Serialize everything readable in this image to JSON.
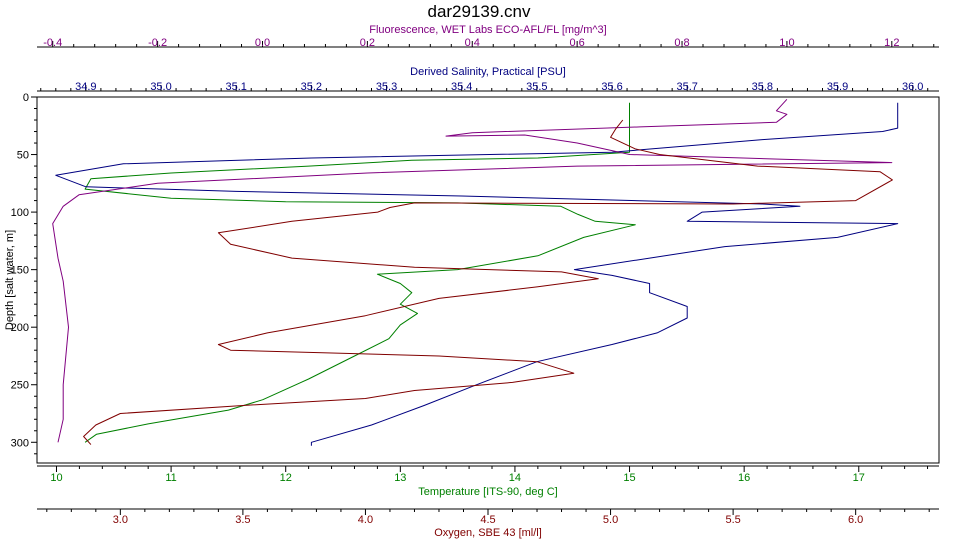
{
  "chart_data": {
    "type": "line",
    "title": "dar29139.cnv",
    "y_axis": {
      "label": "Depth [salt water, m]",
      "range": [
        0,
        318
      ],
      "reversed": true,
      "ticks": [
        0,
        50,
        100,
        150,
        200,
        250,
        300
      ],
      "color": "#000000"
    },
    "x_axes": [
      {
        "id": "fluor",
        "label": "Fluorescence, WET Labs ECO-AFL/FL [mg/m^3]",
        "position": "top-outer",
        "range": [
          -0.43,
          1.29
        ],
        "ticks": [
          -0.4,
          -0.2,
          0.0,
          0.2,
          0.4,
          0.6,
          0.8,
          1.0,
          1.2
        ],
        "tick_labels": [
          "-0.4",
          "-0.2",
          "0.0",
          "0.2",
          "0.4",
          "0.6",
          "0.8",
          "1.0",
          "1.2"
        ],
        "color": "#800080"
      },
      {
        "id": "sal",
        "label": "Derived Salinity, Practical [PSU]",
        "position": "top-inner",
        "range": [
          34.835,
          36.035
        ],
        "ticks": [
          34.9,
          35.0,
          35.1,
          35.2,
          35.3,
          35.4,
          35.5,
          35.6,
          35.7,
          35.8,
          35.9,
          36.0
        ],
        "tick_labels": [
          "34.9",
          "35.0",
          "35.1",
          "35.2",
          "35.3",
          "35.4",
          "35.5",
          "35.6",
          "35.7",
          "35.8",
          "35.9",
          "36.0"
        ],
        "color": "#000080"
      },
      {
        "id": "temp",
        "label": "Temperature [ITS-90, deg C]",
        "position": "bottom-inner",
        "range": [
          9.83,
          17.7
        ],
        "ticks": [
          10,
          11,
          12,
          13,
          14,
          15,
          16,
          17
        ],
        "tick_labels": [
          "10",
          "11",
          "12",
          "13",
          "14",
          "15",
          "16",
          "17"
        ],
        "color": "#008000"
      },
      {
        "id": "oxy",
        "label": "Oxygen, SBE 43 [ml/l]",
        "position": "bottom-outer",
        "range": [
          2.66,
          6.34
        ],
        "ticks": [
          3.0,
          3.5,
          4.0,
          4.5,
          5.0,
          5.5,
          6.0
        ],
        "tick_labels": [
          "3.0",
          "3.5",
          "4.0",
          "4.5",
          "5.0",
          "5.5",
          "6.0"
        ],
        "color": "#800000"
      }
    ],
    "series": [
      {
        "axis": "temp",
        "color": "#008000",
        "points": [
          [
            15.0,
            5
          ],
          [
            15.0,
            25
          ],
          [
            15.0,
            32
          ],
          [
            15.0,
            48
          ],
          [
            14.2,
            53
          ],
          [
            13.1,
            55
          ],
          [
            12.2,
            60
          ],
          [
            11.0,
            66
          ],
          [
            10.3,
            71
          ],
          [
            10.25,
            80
          ],
          [
            11.0,
            88
          ],
          [
            12.0,
            91
          ],
          [
            13.5,
            92
          ],
          [
            14.4,
            95
          ],
          [
            14.55,
            102
          ],
          [
            14.7,
            108
          ],
          [
            15.05,
            111
          ],
          [
            14.6,
            122
          ],
          [
            14.2,
            138
          ],
          [
            13.5,
            150
          ],
          [
            12.8,
            154
          ],
          [
            13.0,
            162
          ],
          [
            13.1,
            170
          ],
          [
            13.0,
            180
          ],
          [
            13.15,
            188
          ],
          [
            13.0,
            198
          ],
          [
            12.9,
            210
          ],
          [
            12.6,
            225
          ],
          [
            12.2,
            245
          ],
          [
            11.8,
            263
          ],
          [
            11.5,
            272
          ],
          [
            10.8,
            284
          ],
          [
            10.35,
            293
          ],
          [
            10.25,
            300
          ]
        ]
      },
      {
        "axis": "sal",
        "color": "#000080",
        "points": [
          [
            35.98,
            5
          ],
          [
            35.98,
            27
          ],
          [
            35.96,
            30
          ],
          [
            35.8,
            37
          ],
          [
            35.6,
            48
          ],
          [
            35.2,
            53
          ],
          [
            34.95,
            58
          ],
          [
            34.86,
            68
          ],
          [
            34.9,
            78
          ],
          [
            35.1,
            82
          ],
          [
            35.4,
            86
          ],
          [
            35.8,
            93
          ],
          [
            35.85,
            95
          ],
          [
            35.72,
            100
          ],
          [
            35.7,
            108
          ],
          [
            35.98,
            110
          ],
          [
            35.9,
            122
          ],
          [
            35.75,
            130
          ],
          [
            35.65,
            140
          ],
          [
            35.55,
            150
          ],
          [
            35.6,
            155
          ],
          [
            35.65,
            162
          ],
          [
            35.65,
            170
          ],
          [
            35.7,
            182
          ],
          [
            35.7,
            192
          ],
          [
            35.66,
            205
          ],
          [
            35.6,
            215
          ],
          [
            35.5,
            230
          ],
          [
            35.42,
            250
          ],
          [
            35.35,
            268
          ],
          [
            35.28,
            285
          ],
          [
            35.2,
            300
          ],
          [
            35.2,
            303
          ]
        ]
      },
      {
        "axis": "fluor",
        "color": "#800080",
        "points": [
          [
            1.0,
            2
          ],
          [
            0.98,
            12
          ],
          [
            1.0,
            15
          ],
          [
            0.98,
            22
          ],
          [
            0.72,
            26
          ],
          [
            0.4,
            31
          ],
          [
            0.35,
            34
          ],
          [
            0.5,
            33
          ],
          [
            0.6,
            40
          ],
          [
            0.7,
            50
          ],
          [
            1.2,
            57
          ],
          [
            0.6,
            60
          ],
          [
            0.2,
            66
          ],
          [
            -0.2,
            75
          ],
          [
            -0.35,
            85
          ],
          [
            -0.38,
            95
          ],
          [
            -0.4,
            110
          ],
          [
            -0.39,
            140
          ],
          [
            -0.38,
            160
          ],
          [
            -0.37,
            200
          ],
          [
            -0.38,
            250
          ],
          [
            -0.38,
            280
          ],
          [
            -0.39,
            300
          ]
        ]
      },
      {
        "axis": "oxy",
        "color": "#800000",
        "points": [
          [
            5.05,
            20
          ],
          [
            5.02,
            28
          ],
          [
            5.0,
            35
          ],
          [
            5.1,
            45
          ],
          [
            5.2,
            50
          ],
          [
            5.6,
            60
          ],
          [
            6.1,
            65
          ],
          [
            6.15,
            72
          ],
          [
            6.0,
            90
          ],
          [
            5.5,
            93
          ],
          [
            4.2,
            92
          ],
          [
            4.1,
            96
          ],
          [
            4.05,
            100
          ],
          [
            3.7,
            108
          ],
          [
            3.4,
            118
          ],
          [
            3.45,
            128
          ],
          [
            3.7,
            140
          ],
          [
            4.2,
            148
          ],
          [
            4.8,
            152
          ],
          [
            4.95,
            158
          ],
          [
            4.7,
            165
          ],
          [
            4.3,
            175
          ],
          [
            4.0,
            190
          ],
          [
            3.6,
            205
          ],
          [
            3.4,
            215
          ],
          [
            3.45,
            220
          ],
          [
            4.3,
            225
          ],
          [
            4.7,
            230
          ],
          [
            4.85,
            240
          ],
          [
            4.6,
            248
          ],
          [
            4.2,
            255
          ],
          [
            4.0,
            262
          ],
          [
            3.5,
            268
          ],
          [
            3.0,
            275
          ],
          [
            2.9,
            285
          ],
          [
            2.85,
            295
          ],
          [
            2.88,
            302
          ]
        ]
      }
    ]
  }
}
